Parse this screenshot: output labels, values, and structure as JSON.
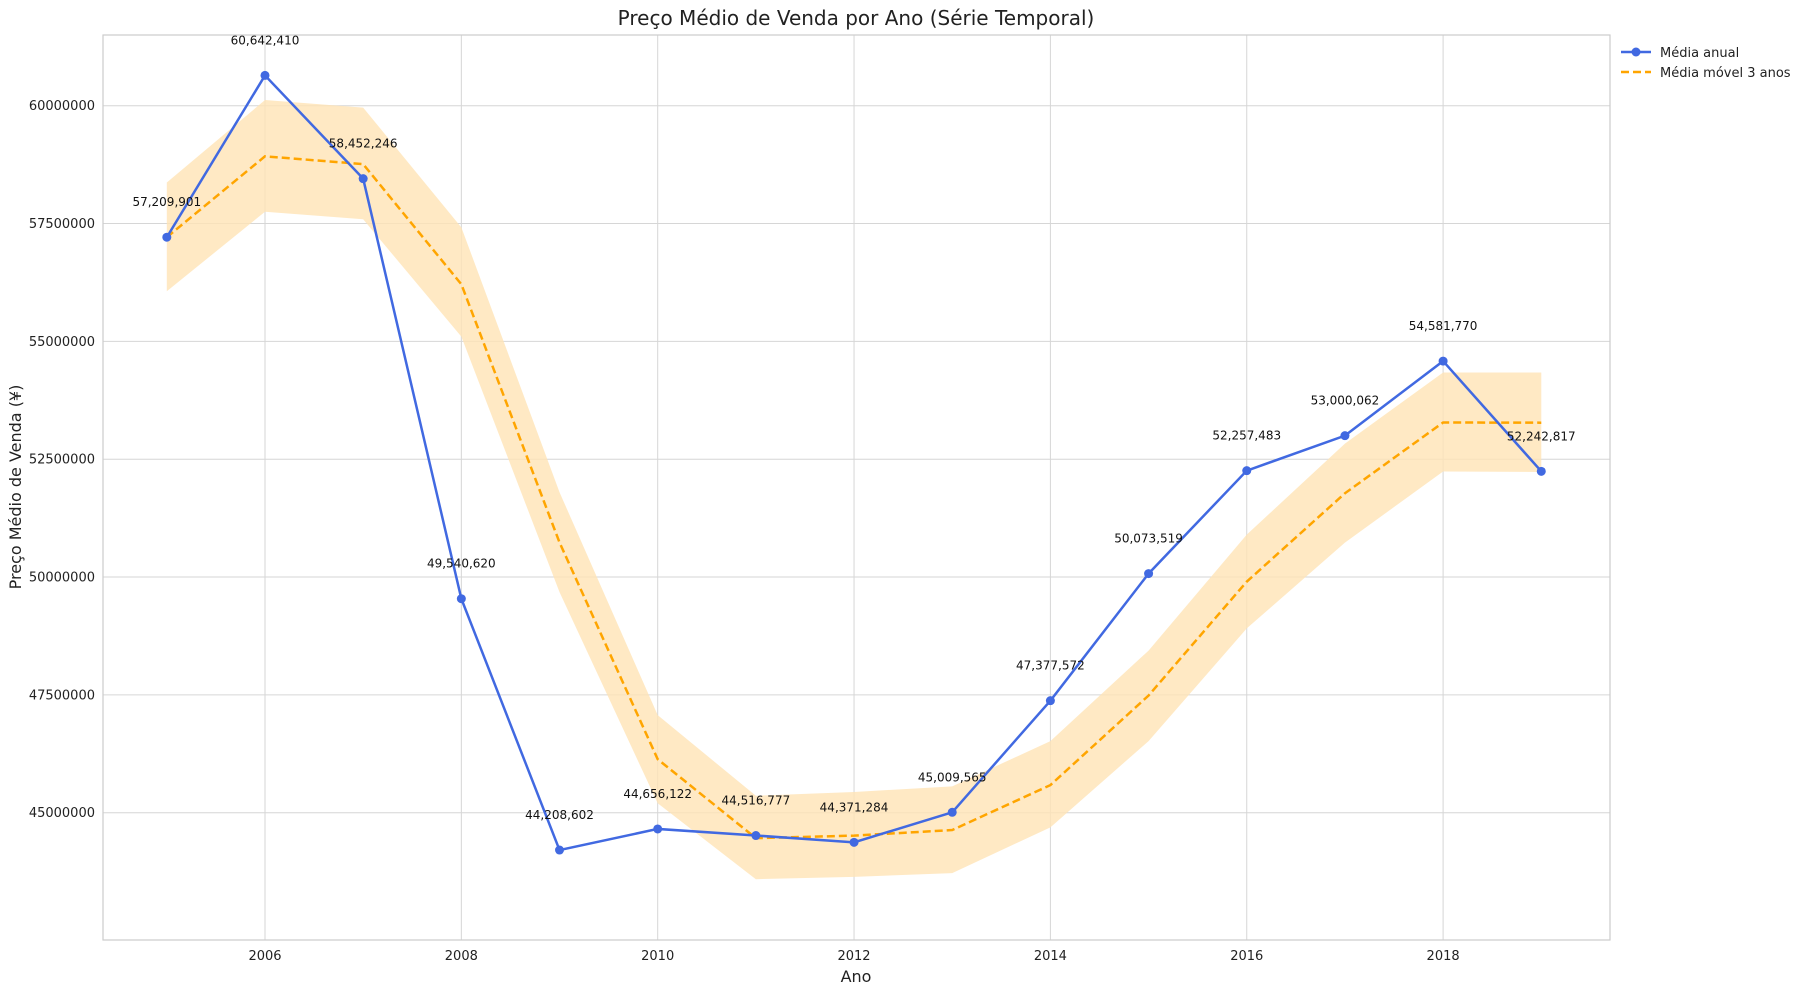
{
  "chart_data": {
    "type": "line",
    "title": "Preço Médio de Venda por Ano (Série Temporal)",
    "xlabel": "Ano",
    "ylabel": "Preço Médio de Venda (¥)",
    "x": [
      2005,
      2006,
      2007,
      2008,
      2009,
      2010,
      2011,
      2012,
      2013,
      2014,
      2015,
      2016,
      2017,
      2018,
      2019
    ],
    "xlim": [
      2004.35,
      2019.7
    ],
    "ylim": [
      42300000,
      61500000
    ],
    "xticks": [
      2006,
      2008,
      2010,
      2012,
      2014,
      2016,
      2018
    ],
    "xtick_labels": [
      "2006",
      "2008",
      "2010",
      "2012",
      "2014",
      "2016",
      "2018"
    ],
    "yticks": [
      45000000,
      47500000,
      50000000,
      52500000,
      55000000,
      57500000,
      60000000
    ],
    "ytick_labels": [
      "45000000",
      "47500000",
      "50000000",
      "52500000",
      "55000000",
      "57500000",
      "60000000"
    ],
    "grid": true,
    "legend_position": "outside-top-right",
    "series": [
      {
        "name": "Média anual",
        "color": "#4169e1",
        "style": "solid-with-markers",
        "values": [
          57209901,
          60642410,
          58452246,
          49540620,
          44208602,
          44656122,
          44516777,
          44371284,
          45009565,
          47377572,
          50073519,
          52257483,
          53000062,
          54581770,
          52242817
        ],
        "labels": [
          "57,209,901",
          "60,642,410",
          "58,452,246",
          "49,540,620",
          "44,208,602",
          "44,656,122",
          "44,516,777",
          "44,371,284",
          "45,009,565",
          "47,377,572",
          "50,073,519",
          "52,257,483",
          "53,000,062",
          "54,581,770",
          "52,242,817"
        ]
      },
      {
        "name": "Média móvel 3 anos",
        "color": "#ffa500",
        "style": "dashed",
        "values": [
          57209901,
          58926156,
          58760092,
          56211759,
          50733823,
          46135115,
          44460500,
          44514728,
          44632542,
          45586140,
          47486885,
          49902858,
          51777021,
          53279772,
          53274883
        ],
        "band_lower": [
          56063000,
          57750000,
          57590000,
          55100000,
          49680000,
          45200000,
          43590000,
          43640000,
          43720000,
          44690000,
          46520000,
          48910000,
          50730000,
          52240000,
          52230000
        ],
        "band_upper": [
          58370000,
          60120000,
          59960000,
          57420000,
          51800000,
          47070000,
          45360000,
          45440000,
          45560000,
          46520000,
          48440000,
          50900000,
          52830000,
          54340000,
          54340000
        ],
        "band_color": "#ffe4b5"
      }
    ]
  }
}
